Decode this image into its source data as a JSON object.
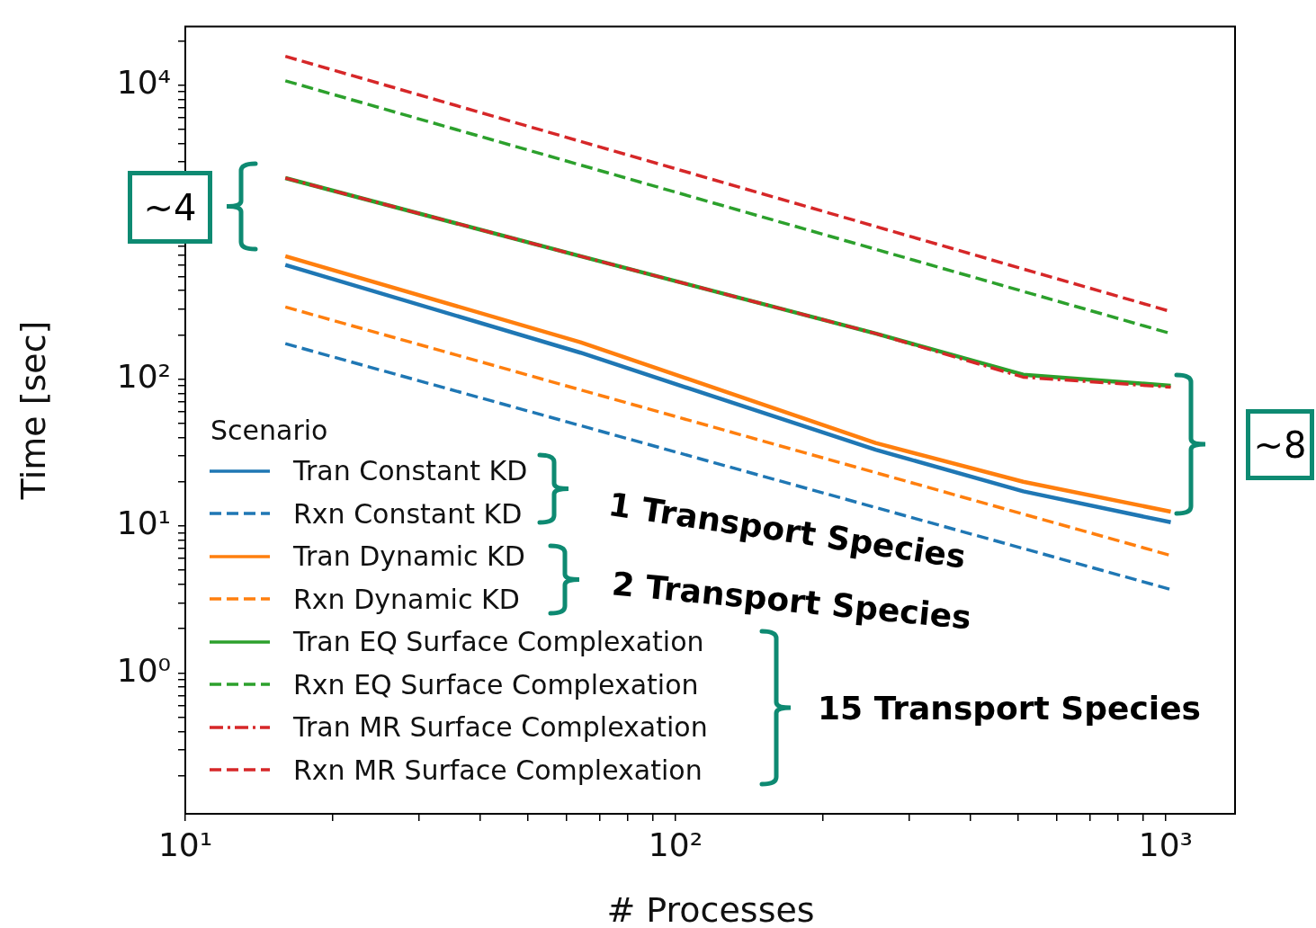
{
  "chart_data": {
    "type": "line",
    "xlabel": "# Processes",
    "ylabel": "Time [sec]",
    "legend_title": "Scenario",
    "legend": "bottom left",
    "log": "xy",
    "grid": false,
    "xlim": [
      10,
      1385
    ],
    "ylim": [
      0.11,
      25000
    ],
    "xticks": [
      {
        "value": 10,
        "label": "10¹"
      },
      {
        "value": 20,
        "label": null
      },
      {
        "value": 30,
        "label": null
      },
      {
        "value": 40,
        "label": null
      },
      {
        "value": 50,
        "label": null
      },
      {
        "value": 60,
        "label": null
      },
      {
        "value": 70,
        "label": null
      },
      {
        "value": 80,
        "label": null
      },
      {
        "value": 90,
        "label": null
      },
      {
        "value": 100,
        "label": "10²"
      },
      {
        "value": 200,
        "label": null
      },
      {
        "value": 300,
        "label": null
      },
      {
        "value": 400,
        "label": null
      },
      {
        "value": 500,
        "label": null
      },
      {
        "value": 600,
        "label": null
      },
      {
        "value": 700,
        "label": null
      },
      {
        "value": 800,
        "label": null
      },
      {
        "value": 900,
        "label": null
      },
      {
        "value": 1000,
        "label": "10³"
      }
    ],
    "yticks": [
      {
        "value": 0.2,
        "label": null
      },
      {
        "value": 0.3,
        "label": null
      },
      {
        "value": 0.4,
        "label": null
      },
      {
        "value": 0.5,
        "label": null
      },
      {
        "value": 0.6,
        "label": null
      },
      {
        "value": 0.7,
        "label": null
      },
      {
        "value": 0.8,
        "label": null
      },
      {
        "value": 0.9,
        "label": null
      },
      {
        "value": 1,
        "label": "10⁰"
      },
      {
        "value": 2,
        "label": null
      },
      {
        "value": 3,
        "label": null
      },
      {
        "value": 4,
        "label": null
      },
      {
        "value": 5,
        "label": null
      },
      {
        "value": 6,
        "label": null
      },
      {
        "value": 7,
        "label": null
      },
      {
        "value": 8,
        "label": null
      },
      {
        "value": 9,
        "label": null
      },
      {
        "value": 10,
        "label": "10¹"
      },
      {
        "value": 20,
        "label": null
      },
      {
        "value": 30,
        "label": null
      },
      {
        "value": 40,
        "label": null
      },
      {
        "value": 50,
        "label": null
      },
      {
        "value": 60,
        "label": null
      },
      {
        "value": 70,
        "label": null
      },
      {
        "value": 80,
        "label": null
      },
      {
        "value": 90,
        "label": null
      },
      {
        "value": 100,
        "label": "10²"
      },
      {
        "value": 200,
        "label": null
      },
      {
        "value": 300,
        "label": null
      },
      {
        "value": 400,
        "label": null
      },
      {
        "value": 500,
        "label": null
      },
      {
        "value": 600,
        "label": null
      },
      {
        "value": 700,
        "label": null
      },
      {
        "value": 800,
        "label": null
      },
      {
        "value": 900,
        "label": null
      },
      {
        "value": 1000,
        "label": null
      },
      {
        "value": 2000,
        "label": null
      },
      {
        "value": 3000,
        "label": null
      },
      {
        "value": 4000,
        "label": null
      },
      {
        "value": 5000,
        "label": null
      },
      {
        "value": 6000,
        "label": null
      },
      {
        "value": 7000,
        "label": null
      },
      {
        "value": 8000,
        "label": null
      },
      {
        "value": 9000,
        "label": null
      },
      {
        "value": 10000,
        "label": "10⁴"
      },
      {
        "value": 20000,
        "label": null
      }
    ],
    "series": [
      {
        "name": "Tran Constant KD",
        "color": "#1f77b4",
        "line_style": "solid",
        "x": [
          16,
          64,
          256,
          512,
          1024
        ],
        "values": [
          597,
          151,
          33,
          17.2,
          10.6
        ]
      },
      {
        "name": "Rxn Constant KD",
        "color": "#1f77b4",
        "line_style": "dashed",
        "x": [
          16,
          1024
        ],
        "values": [
          174,
          3.7
        ]
      },
      {
        "name": "Tran Dynamic KD",
        "color": "#ff7f0e",
        "line_style": "solid",
        "x": [
          16,
          64,
          256,
          512,
          1024
        ],
        "values": [
          685,
          178,
          36.7,
          20,
          12.5
        ]
      },
      {
        "name": "Rxn Dynamic KD",
        "color": "#ff7f0e",
        "line_style": "dashed",
        "x": [
          16,
          1024
        ],
        "values": [
          309,
          6.3
        ]
      },
      {
        "name": "Tran EQ Surface Complexation",
        "color": "#2ca02c",
        "line_style": "solid",
        "x": [
          16,
          64,
          256,
          512,
          1024
        ],
        "values": [
          2330,
          685,
          204,
          107,
          90
        ]
      },
      {
        "name": "Rxn EQ Surface Complexation",
        "color": "#2ca02c",
        "line_style": "dashed",
        "x": [
          16,
          1024
        ],
        "values": [
          10700,
          204
        ]
      },
      {
        "name": "Tran MR Surface Complexation",
        "color": "#d62728",
        "line_style": "dashdot",
        "x": [
          16,
          64,
          256,
          512,
          1024
        ],
        "values": [
          2330,
          685,
          204,
          103,
          88
        ]
      },
      {
        "name": "Rxn MR Surface Complexation",
        "color": "#d62728",
        "line_style": "dashed",
        "x": [
          16,
          1024
        ],
        "values": [
          15700,
          288
        ]
      }
    ],
    "annotations": [
      "~4",
      "~8",
      "1 Transport Species",
      "2 Transport Species",
      "15 Transport Species"
    ]
  }
}
